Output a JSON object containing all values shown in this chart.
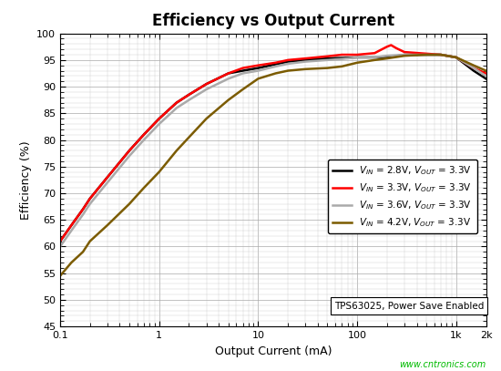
{
  "title": "Efficiency vs Output Current",
  "xlabel": "Output Current (mA)",
  "ylabel": "Efficiency (%)",
  "ylim": [
    45,
    100
  ],
  "xlim": [
    0.1,
    2000
  ],
  "yticks": [
    45,
    50,
    55,
    60,
    65,
    70,
    75,
    80,
    85,
    90,
    95,
    100
  ],
  "xtick_labels": [
    "0.1",
    "1",
    "10",
    "100",
    "1k",
    "2k"
  ],
  "xtick_vals": [
    0.1,
    1,
    10,
    100,
    1000,
    2000
  ],
  "watermark": "www.cntronics.com",
  "annotation": "TPS63025, Power Save Enabled",
  "curves": [
    {
      "label_vin": "2.8",
      "label_vout": "3.3",
      "color": "#000000",
      "linewidth": 1.8,
      "x": [
        0.1,
        0.13,
        0.17,
        0.2,
        0.3,
        0.5,
        0.7,
        1.0,
        1.5,
        2.0,
        3.0,
        5.0,
        7.0,
        10.0,
        15.0,
        20.0,
        30.0,
        50.0,
        70.0,
        100.0,
        150.0,
        200.0,
        300.0,
        500.0,
        700.0,
        1000.0,
        1500.0,
        2000.0
      ],
      "y": [
        61,
        64,
        67,
        69,
        73,
        78,
        81,
        84,
        87,
        88.5,
        90.5,
        92.5,
        93.0,
        93.5,
        94.2,
        94.7,
        95.0,
        95.3,
        95.4,
        95.5,
        95.5,
        95.5,
        96.0,
        96.0,
        96.0,
        95.5,
        93.0,
        91.5
      ]
    },
    {
      "label_vin": "3.3",
      "label_vout": "3.3",
      "color": "#ff0000",
      "linewidth": 1.8,
      "x": [
        0.1,
        0.13,
        0.17,
        0.2,
        0.3,
        0.5,
        0.7,
        1.0,
        1.5,
        2.0,
        3.0,
        5.0,
        7.0,
        10.0,
        15.0,
        20.0,
        30.0,
        50.0,
        70.0,
        100.0,
        150.0,
        200.0,
        220.0,
        250.0,
        300.0,
        500.0,
        700.0,
        1000.0,
        1500.0,
        2000.0
      ],
      "y": [
        61,
        64,
        67,
        69,
        73,
        78,
        81,
        84,
        87,
        88.5,
        90.5,
        92.5,
        93.5,
        94.0,
        94.5,
        95.0,
        95.3,
        95.7,
        96.0,
        96.0,
        96.3,
        97.5,
        97.8,
        97.2,
        96.5,
        96.2,
        96.0,
        95.5,
        93.5,
        92.5
      ]
    },
    {
      "label_vin": "3.6",
      "label_vout": "3.3",
      "color": "#aaaaaa",
      "linewidth": 1.8,
      "x": [
        0.1,
        0.13,
        0.17,
        0.2,
        0.3,
        0.5,
        0.7,
        1.0,
        1.5,
        2.0,
        3.0,
        5.0,
        7.0,
        10.0,
        15.0,
        20.0,
        30.0,
        50.0,
        70.0,
        100.0,
        150.0,
        200.0,
        300.0,
        500.0,
        700.0,
        1000.0,
        1500.0,
        2000.0
      ],
      "y": [
        60,
        63,
        66,
        68,
        72,
        77,
        80,
        83,
        86,
        87.5,
        89.5,
        91.5,
        92.5,
        93.0,
        93.8,
        94.3,
        94.7,
        95.0,
        95.2,
        95.5,
        95.5,
        95.8,
        96.0,
        96.0,
        96.0,
        95.5,
        93.5,
        92.0
      ]
    },
    {
      "label_vin": "4.2",
      "label_vout": "3.3",
      "color": "#7B5B00",
      "linewidth": 1.8,
      "x": [
        0.1,
        0.13,
        0.17,
        0.2,
        0.3,
        0.5,
        0.7,
        1.0,
        1.5,
        2.0,
        3.0,
        5.0,
        7.0,
        10.0,
        15.0,
        20.0,
        30.0,
        50.0,
        70.0,
        100.0,
        150.0,
        200.0,
        300.0,
        500.0,
        700.0,
        1000.0,
        1500.0,
        2000.0
      ],
      "y": [
        54.5,
        57,
        59,
        61,
        64,
        68,
        71,
        74,
        78,
        80.5,
        84,
        87.5,
        89.5,
        91.5,
        92.5,
        93.0,
        93.3,
        93.5,
        93.8,
        94.5,
        95.0,
        95.3,
        95.8,
        96.0,
        96.0,
        95.5,
        94.0,
        93.0
      ]
    }
  ]
}
